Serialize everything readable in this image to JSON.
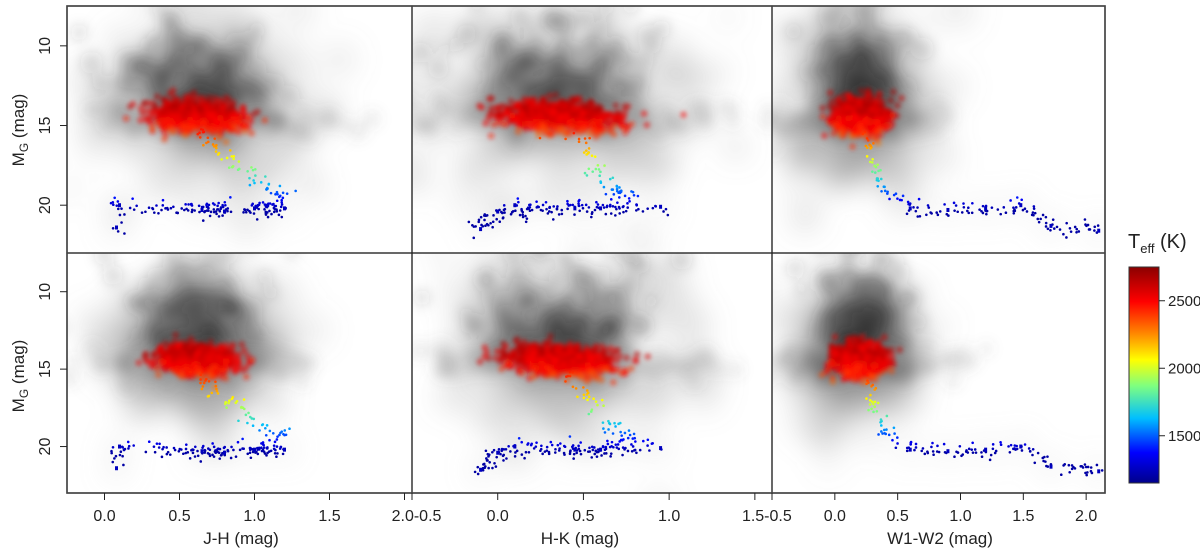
{
  "chart_data": {
    "type": "scatter",
    "description_title": "",
    "y_label_main": "M",
    "y_label_sub": "G",
    "y_label_unit": " (mag)",
    "y_range": [
      7.5,
      23
    ],
    "y_ticks": [
      10,
      15,
      20
    ],
    "rows": 2,
    "panels": [
      {
        "id": "r1-jh",
        "row": 0,
        "col": 0,
        "xlabel": "J-H (mag)",
        "xlim": [
          -0.25,
          2.05
        ],
        "xticks": [
          0.0,
          0.5,
          1.0,
          1.5,
          2.0
        ],
        "core_x": 0.62,
        "core_y": 14.4,
        "sx": 0.11,
        "sy": 0.75,
        "slope": 0.23,
        "halo_x": 0.6,
        "halo_y": 3.0,
        "tail": [
          [
            0.62,
            15.2
          ],
          [
            0.72,
            16.3
          ],
          [
            0.85,
            17.2
          ],
          [
            0.97,
            18.1
          ],
          [
            1.1,
            18.9
          ],
          [
            1.22,
            19.4
          ],
          [
            1.0,
            20.2
          ],
          [
            1.2,
            20.2
          ],
          [
            0.65,
            20.3
          ],
          [
            0.8,
            20.4
          ],
          [
            0.1,
            20.0
          ],
          [
            0.08,
            21.4
          ]
        ]
      },
      {
        "id": "r1-hk",
        "row": 0,
        "col": 1,
        "xlabel": "H-K (mag)",
        "xlim": [
          -0.5,
          1.6
        ],
        "xticks": [
          -0.5,
          0.0,
          0.5,
          1.0,
          1.5
        ],
        "core_x": 0.36,
        "core_y": 14.4,
        "sx": 0.13,
        "sy": 0.75,
        "slope": 0.2,
        "halo_x": 0.75,
        "halo_y": 3.0,
        "tail": [
          [
            0.45,
            15.3
          ],
          [
            0.5,
            16.3
          ],
          [
            0.55,
            17.2
          ],
          [
            0.6,
            18.1
          ],
          [
            0.65,
            18.9
          ],
          [
            0.8,
            19.4
          ],
          [
            0.6,
            20.2
          ],
          [
            0.45,
            20.2
          ],
          [
            0.1,
            20.0
          ],
          [
            -0.1,
            21.5
          ],
          [
            0.0,
            20.4
          ],
          [
            0.95,
            20.1
          ]
        ]
      },
      {
        "id": "r1-w12",
        "row": 0,
        "col": 2,
        "xlabel": "W1-W2 (mag)",
        "xlim": [
          -0.5,
          2.15
        ],
        "xticks": [
          -0.5,
          0.0,
          0.5,
          1.0,
          1.5,
          2.0
        ],
        "core_x": 0.2,
        "core_y": 14.4,
        "sx": 0.08,
        "sy": 0.85,
        "slope": 0.06,
        "halo_x": 0.5,
        "halo_y": 3.0,
        "tail": [
          [
            0.24,
            15.5
          ],
          [
            0.28,
            16.4
          ],
          [
            0.3,
            17.3
          ],
          [
            0.33,
            18.2
          ],
          [
            0.4,
            19.0
          ],
          [
            0.5,
            19.7
          ],
          [
            0.6,
            20.2
          ],
          [
            0.9,
            20.3
          ],
          [
            1.2,
            20.2
          ],
          [
            1.48,
            20.0
          ],
          [
            1.72,
            21.3
          ],
          [
            2.1,
            21.6
          ]
        ]
      },
      {
        "id": "r2-jh",
        "row": 1,
        "col": 0,
        "xlabel": "J-H (mag)",
        "xlim": [
          -0.25,
          2.05
        ],
        "xticks": [
          0.0,
          0.5,
          1.0,
          1.5,
          2.0
        ],
        "core_x": 0.62,
        "core_y": 14.4,
        "sx": 0.1,
        "sy": 0.75,
        "slope": 0.23,
        "halo_x": 0.5,
        "halo_y": 2.6,
        "tail": [
          [
            0.62,
            15.2
          ],
          [
            0.72,
            16.3
          ],
          [
            0.85,
            17.2
          ],
          [
            0.97,
            18.1
          ],
          [
            1.1,
            18.9
          ],
          [
            1.22,
            19.4
          ],
          [
            1.0,
            20.2
          ],
          [
            1.2,
            20.2
          ],
          [
            0.65,
            20.3
          ],
          [
            0.8,
            20.4
          ],
          [
            0.1,
            20.0
          ],
          [
            0.08,
            21.4
          ]
        ]
      },
      {
        "id": "r2-hk",
        "row": 1,
        "col": 1,
        "xlabel": "H-K (mag)",
        "xlim": [
          -0.5,
          1.6
        ],
        "xticks": [
          -0.5,
          0.0,
          0.5,
          1.0,
          1.5
        ],
        "core_x": 0.36,
        "core_y": 14.4,
        "sx": 0.12,
        "sy": 0.75,
        "slope": 0.2,
        "halo_x": 0.55,
        "halo_y": 2.6,
        "tail": [
          [
            0.45,
            15.3
          ],
          [
            0.5,
            16.3
          ],
          [
            0.55,
            17.2
          ],
          [
            0.6,
            18.1
          ],
          [
            0.65,
            18.9
          ],
          [
            0.8,
            19.4
          ],
          [
            0.6,
            20.2
          ],
          [
            0.45,
            20.2
          ],
          [
            0.1,
            20.0
          ],
          [
            -0.1,
            21.5
          ],
          [
            0.0,
            20.4
          ],
          [
            0.95,
            20.1
          ]
        ]
      },
      {
        "id": "r2-w12",
        "row": 1,
        "col": 2,
        "xlabel": "W1-W2 (mag)",
        "xlim": [
          -0.5,
          2.15
        ],
        "xticks": [
          -0.5,
          0.0,
          0.5,
          1.0,
          1.5,
          2.0
        ],
        "core_x": 0.2,
        "core_y": 14.4,
        "sx": 0.08,
        "sy": 0.85,
        "slope": 0.06,
        "halo_x": 0.45,
        "halo_y": 2.6,
        "tail": [
          [
            0.24,
            15.5
          ],
          [
            0.28,
            16.4
          ],
          [
            0.3,
            17.3
          ],
          [
            0.33,
            18.2
          ],
          [
            0.4,
            19.0
          ],
          [
            0.5,
            19.7
          ],
          [
            0.6,
            20.2
          ],
          [
            0.9,
            20.3
          ],
          [
            1.2,
            20.2
          ],
          [
            1.48,
            20.0
          ],
          [
            1.72,
            21.3
          ],
          [
            2.1,
            21.6
          ]
        ]
      }
    ],
    "x_tick_labels_row": [
      "0.0",
      "0.5",
      "1.0",
      "1.5",
      "2.0-0.5",
      "0.0",
      "0.5",
      "1.0",
      "1.5-0.5",
      "0.0",
      "0.5",
      "1.0",
      "1.5",
      "2.0"
    ],
    "colorbar": {
      "label_main": "T",
      "label_sub": "eff",
      "label_unit": " (K)",
      "min": 1150,
      "max": 2750,
      "ticks": [
        1500,
        2000,
        2500
      ],
      "colors": [
        "#00008b",
        "#0000ff",
        "#00bfff",
        "#7fff7f",
        "#ffff00",
        "#ff8000",
        "#ff0000",
        "#8b0000"
      ]
    },
    "color_encoding": "Teff (K)"
  }
}
